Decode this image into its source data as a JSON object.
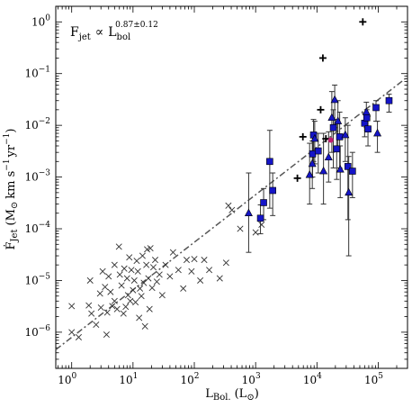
{
  "chart_data": {
    "type": "scatter",
    "title": "",
    "annotation": "F_jet ∝ L_bol^0.87±0.12",
    "annotation_parts": {
      "lhs": "F",
      "lhs_sub": "jet",
      "rel": "∝",
      "rhs": "L",
      "rhs_sub": "bol",
      "exponent": "0.87±0.12"
    },
    "xlabel": "L_Bol. (L_⊙)",
    "xlabel_parts": {
      "main": "L",
      "sub": "Bol.",
      "unit": "(L",
      "unit_sub": "⊙",
      "close": ")"
    },
    "ylabel": "Ḟ_jet (M_⊙ km s^-1 yr^-1)",
    "xscale": "log",
    "yscale": "log",
    "xlim": [
      0.55,
      300000
    ],
    "ylim": [
      2e-07,
      2.0
    ],
    "x_ticks": [
      {
        "value": 1,
        "label": "10",
        "exp": "0"
      },
      {
        "value": 10,
        "label": "10",
        "exp": "1"
      },
      {
        "value": 100,
        "label": "10",
        "exp": "2"
      },
      {
        "value": 1000,
        "label": "10",
        "exp": "3"
      },
      {
        "value": 10000,
        "label": "10",
        "exp": "4"
      },
      {
        "value": 100000,
        "label": "10",
        "exp": "5"
      }
    ],
    "y_ticks": [
      {
        "value": 1e-06,
        "label": "10",
        "exp": "−6"
      },
      {
        "value": 1e-05,
        "label": "10",
        "exp": "−5"
      },
      {
        "value": 0.0001,
        "label": "10",
        "exp": "−4"
      },
      {
        "value": 0.001,
        "label": "10",
        "exp": "−3"
      },
      {
        "value": 0.01,
        "label": "10",
        "exp": "−2"
      },
      {
        "value": 0.1,
        "label": "10",
        "exp": "−1"
      },
      {
        "value": 1,
        "label": "10",
        "exp": "0"
      }
    ],
    "fit_line": {
      "style": "dash-dot",
      "color": "#555555",
      "points": [
        [
          0.55,
          4.6e-07
        ],
        [
          300000,
          0.086
        ]
      ]
    },
    "series": [
      {
        "marker": "x",
        "color": "#333333",
        "points": [
          [
            1.0,
            3.2e-06
          ],
          [
            1.0,
            1e-06
          ],
          [
            1.3,
            8e-07
          ],
          [
            1.9,
            3.3e-06
          ],
          [
            2.0,
            1e-05
          ],
          [
            2.1,
            2.3e-06
          ],
          [
            2.5,
            1.4e-06
          ],
          [
            2.9,
            5.6e-06
          ],
          [
            3.0,
            3e-06
          ],
          [
            3.2,
            1.5e-05
          ],
          [
            3.5,
            7.5e-06
          ],
          [
            3.7,
            9e-07
          ],
          [
            3.8,
            2.4e-06
          ],
          [
            4.0,
            1.2e-05
          ],
          [
            4.3,
            6e-06
          ],
          [
            4.6,
            3.2e-06
          ],
          [
            5.0,
            2e-05
          ],
          [
            5.0,
            4e-06
          ],
          [
            5.5,
            2.8e-06
          ],
          [
            5.9,
            4.5e-05
          ],
          [
            6.1,
            1.3e-05
          ],
          [
            6.5,
            8e-06
          ],
          [
            7.0,
            2.3e-06
          ],
          [
            7.2,
            1.7e-05
          ],
          [
            7.6,
            3.1e-06
          ],
          [
            8.0,
            1.1e-05
          ],
          [
            8.3,
            5.2e-06
          ],
          [
            8.7,
            2.8e-05
          ],
          [
            9.0,
            4e-06
          ],
          [
            9.4,
            1.6e-05
          ],
          [
            10.0,
            6.5e-06
          ],
          [
            10.5,
            1e-05
          ],
          [
            11.0,
            3.8e-06
          ],
          [
            11.5,
            2.4e-05
          ],
          [
            12.0,
            1.5e-05
          ],
          [
            12.6,
            1.9e-06
          ],
          [
            13.0,
            7e-06
          ],
          [
            13.7,
            5e-06
          ],
          [
            14.3,
            3e-05
          ],
          [
            15.0,
            9e-06
          ],
          [
            15.7,
            1.3e-06
          ],
          [
            16.5,
            2e-05
          ],
          [
            17.0,
            4e-05
          ],
          [
            17.8,
            1.1e-05
          ],
          [
            18.6,
            2.8e-06
          ],
          [
            19.2,
            4.2e-05
          ],
          [
            20.5,
            7.2e-06
          ],
          [
            21.5,
            1.8e-05
          ],
          [
            23.0,
            2.5e-05
          ],
          [
            24.5,
            9.5e-06
          ],
          [
            27.0,
            1.3e-05
          ],
          [
            30.0,
            5.2e-06
          ],
          [
            34.0,
            2e-05
          ],
          [
            40.0,
            1.2e-05
          ],
          [
            45.0,
            3.5e-05
          ],
          [
            55.0,
            1.6e-05
          ],
          [
            66.0,
            7e-06
          ],
          [
            75.0,
            2.5e-05
          ],
          [
            90.0,
            1.5e-05
          ],
          [
            100.0,
            2.6e-05
          ],
          [
            125.0,
            1e-05
          ],
          [
            145.0,
            2.5e-05
          ],
          [
            175.0,
            1.6e-05
          ],
          [
            260.0,
            1.1e-05
          ],
          [
            330.0,
            2.2e-05
          ],
          [
            360.0,
            0.00028
          ],
          [
            410.0,
            0.00023
          ],
          [
            560.0,
            0.0001
          ],
          [
            1000.0,
            8.5e-05
          ],
          [
            1250.0,
            0.00012
          ]
        ]
      },
      {
        "marker": "plus",
        "color": "#000000",
        "points": [
          [
            4800,
            0.00095
          ],
          [
            5900,
            0.006
          ],
          [
            11500,
            0.02
          ],
          [
            12500,
            0.2
          ],
          [
            14000,
            0.0055
          ],
          [
            56000,
            1.0
          ]
        ]
      },
      {
        "marker": "square",
        "color": "#1515c8",
        "errorbars": true,
        "points": [
          {
            "x": 1200,
            "y": 0.00016,
            "lo": 8e-05,
            "hi": 0.00029
          },
          {
            "x": 1350,
            "y": 0.00032,
            "lo": 0.00015,
            "hi": 0.0006
          },
          {
            "x": 1700,
            "y": 0.002,
            "lo": 0.00025,
            "hi": 0.008
          },
          {
            "x": 1900,
            "y": 0.00055,
            "lo": 0.00018,
            "hi": 0.0012
          },
          {
            "x": 8500,
            "y": 0.0028,
            "lo": 0.001,
            "hi": 0.0065
          },
          {
            "x": 8800,
            "y": 0.0065,
            "lo": 0.002,
            "hi": 0.013
          },
          {
            "x": 10500,
            "y": 0.0032,
            "lo": 0.0012,
            "hi": 0.007
          },
          {
            "x": 18500,
            "y": 0.009,
            "lo": 0.0015,
            "hi": 0.02
          },
          {
            "x": 21000,
            "y": 0.0035,
            "lo": 0.0009,
            "hi": 0.013
          },
          {
            "x": 23500,
            "y": 0.006,
            "lo": 0.0015,
            "hi": 0.018
          },
          {
            "x": 32000,
            "y": 0.0016,
            "lo": 0.00015,
            "hi": 0.01
          },
          {
            "x": 38000,
            "y": 0.0013,
            "lo": 0.0004,
            "hi": 0.003
          },
          {
            "x": 60000,
            "y": 0.011,
            "lo": 0.006,
            "hi": 0.017
          },
          {
            "x": 65000,
            "y": 0.014,
            "lo": 0.008,
            "hi": 0.02
          },
          {
            "x": 68000,
            "y": 0.0085,
            "lo": 0.004,
            "hi": 0.015
          },
          {
            "x": 92000,
            "y": 0.022,
            "lo": 0.012,
            "hi": 0.03
          },
          {
            "x": 150000,
            "y": 0.03,
            "lo": 0.018,
            "hi": 0.04
          }
        ]
      },
      {
        "marker": "triangle",
        "color": "#1515c8",
        "errorbars": true,
        "points": [
          {
            "x": 770,
            "y": 0.0002,
            "lo": 3.5e-05,
            "hi": 0.0012
          },
          {
            "x": 7600,
            "y": 0.0011,
            "lo": 0.0003,
            "hi": 0.0045
          },
          {
            "x": 8400,
            "y": 0.0018,
            "lo": 0.0006,
            "hi": 0.005
          },
          {
            "x": 9200,
            "y": 0.0055,
            "lo": 0.0018,
            "hi": 0.012
          },
          {
            "x": 12800,
            "y": 0.0013,
            "lo": 0.0003,
            "hi": 0.007
          },
          {
            "x": 15500,
            "y": 0.0024,
            "lo": 0.0008,
            "hi": 0.0075
          },
          {
            "x": 17500,
            "y": 0.014,
            "lo": 0.003,
            "hi": 0.045
          },
          {
            "x": 19500,
            "y": 0.031,
            "lo": 0.009,
            "hi": 0.06
          },
          {
            "x": 22000,
            "y": 0.012,
            "lo": 0.004,
            "hi": 0.03
          },
          {
            "x": 24000,
            "y": 0.0014,
            "lo": 0.0004,
            "hi": 0.004
          },
          {
            "x": 29000,
            "y": 0.0065,
            "lo": 0.002,
            "hi": 0.014
          },
          {
            "x": 33000,
            "y": 0.0005,
            "lo": 3e-05,
            "hi": 0.0025
          },
          {
            "x": 64000,
            "y": 0.018,
            "lo": 0.009,
            "hi": 0.028
          },
          {
            "x": 97000,
            "y": 0.007,
            "lo": 0.003,
            "hi": 0.012
          }
        ]
      },
      {
        "marker": "circle",
        "color": "#c02070",
        "points": [
          [
            16800,
            0.0052
          ]
        ]
      }
    ]
  }
}
